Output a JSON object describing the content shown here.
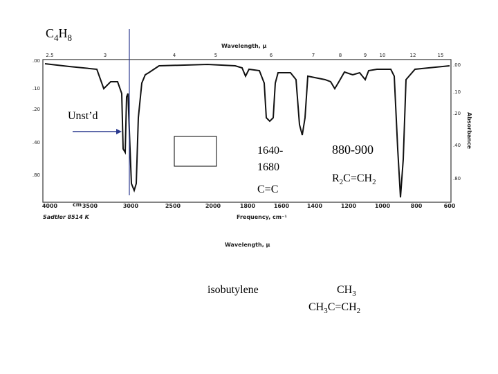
{
  "formula": [
    "C",
    "4",
    "H",
    "8"
  ],
  "spectrum": {
    "top_axis_title": "Wavelength, μ",
    "top_ticks": [
      "2.5",
      "3",
      "4",
      "5",
      "6",
      "7",
      "8",
      "9",
      "10",
      "12",
      "15"
    ],
    "left_ticks": [
      ".00",
      ".10",
      ".20",
      ".40",
      ".80"
    ],
    "right_ticks": [
      ".00",
      ".10",
      ".20",
      ".40",
      ".80"
    ],
    "right_axis_title": "Absorbance",
    "bottom_ticks": [
      "4000",
      "3500",
      "3000",
      "2500",
      "2000",
      "1800",
      "1600",
      "1400",
      "1200",
      "1000",
      "800",
      "600"
    ],
    "bottom_unit": "cm",
    "bottom_axis_title": "Frequency, cm⁻¹",
    "source": "Sadtler 8514 K"
  },
  "annotations": {
    "unsaturated": "Unst’d",
    "cc_range": [
      "1640-",
      "1680"
    ],
    "cc_label": "C=C",
    "oop_range": "880-900",
    "oop_formula": [
      "R",
      "2",
      "C=CH",
      "2"
    ]
  },
  "lower_axis_title": "Wavelength, μ",
  "compound": "isobutylene",
  "structure_top": [
    "CH",
    "3"
  ],
  "structure_bottom": [
    "CH",
    "3",
    "C=CH",
    "2"
  ]
}
